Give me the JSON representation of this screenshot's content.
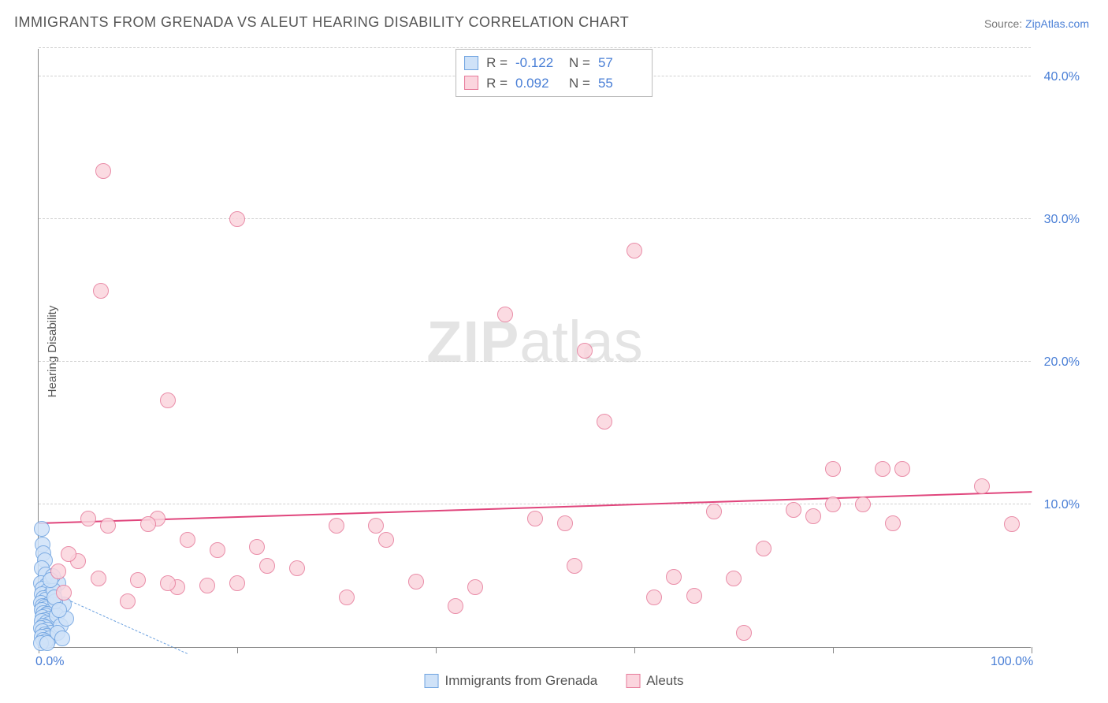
{
  "title": "IMMIGRANTS FROM GRENADA VS ALEUT HEARING DISABILITY CORRELATION CHART",
  "source_label": "Source: ",
  "source_link": "ZipAtlas.com",
  "ylabel": "Hearing Disability",
  "watermark_bold": "ZIP",
  "watermark_light": "atlas",
  "chart": {
    "type": "scatter",
    "xlim": [
      0,
      100
    ],
    "ylim": [
      0,
      42
    ],
    "x_ticks": [
      0,
      20,
      40,
      60,
      80,
      100
    ],
    "x_tick_labels": {
      "0": "0.0%",
      "100": "100.0%"
    },
    "y_gridlines": [
      10,
      20,
      30,
      40,
      42
    ],
    "y_tick_labels": {
      "10": "10.0%",
      "20": "20.0%",
      "30": "30.0%",
      "40": "40.0%"
    },
    "background_color": "#ffffff",
    "grid_color": "#d0d0d0",
    "axis_color": "#888888",
    "marker_radius": 10,
    "series": [
      {
        "name": "Immigrants from Grenada",
        "fill": "#cfe2f8",
        "stroke": "#6fa3e0",
        "R": "-0.122",
        "N": "57",
        "trend": {
          "x1": 0,
          "y1": 4.2,
          "x2": 15,
          "y2": -0.5,
          "color": "#6fa3e0",
          "width": 1.5,
          "dash": true
        },
        "points": [
          [
            0.3,
            8.3
          ],
          [
            0.4,
            7.2
          ],
          [
            0.5,
            6.6
          ],
          [
            0.6,
            6.1
          ],
          [
            0.3,
            5.5
          ],
          [
            0.7,
            5.1
          ],
          [
            0.2,
            4.5
          ],
          [
            0.8,
            4.3
          ],
          [
            0.4,
            4.1
          ],
          [
            0.9,
            3.9
          ],
          [
            0.3,
            3.7
          ],
          [
            1.1,
            3.6
          ],
          [
            0.5,
            3.4
          ],
          [
            0.7,
            3.3
          ],
          [
            0.2,
            3.1
          ],
          [
            1.0,
            3.0
          ],
          [
            0.4,
            2.9
          ],
          [
            0.6,
            2.8
          ],
          [
            0.8,
            2.7
          ],
          [
            0.3,
            2.6
          ],
          [
            1.2,
            2.5
          ],
          [
            0.5,
            2.4
          ],
          [
            0.9,
            2.3
          ],
          [
            0.7,
            2.2
          ],
          [
            0.4,
            2.1
          ],
          [
            1.1,
            2.0
          ],
          [
            0.6,
            1.9
          ],
          [
            0.3,
            1.8
          ],
          [
            0.8,
            1.7
          ],
          [
            1.0,
            1.6
          ],
          [
            0.5,
            1.5
          ],
          [
            0.7,
            1.4
          ],
          [
            0.2,
            1.3
          ],
          [
            0.9,
            1.2
          ],
          [
            0.4,
            1.1
          ],
          [
            1.3,
            1.0
          ],
          [
            0.6,
            0.9
          ],
          [
            0.8,
            0.8
          ],
          [
            0.3,
            0.7
          ],
          [
            1.1,
            0.6
          ],
          [
            0.5,
            0.5
          ],
          [
            0.7,
            0.4
          ],
          [
            0.2,
            0.3
          ],
          [
            0.9,
            0.25
          ],
          [
            2.0,
            4.5
          ],
          [
            2.5,
            3.0
          ],
          [
            1.8,
            2.2
          ],
          [
            2.2,
            1.5
          ],
          [
            1.5,
            4.0
          ],
          [
            1.7,
            3.2
          ],
          [
            2.8,
            2.0
          ],
          [
            1.4,
            5.0
          ],
          [
            1.9,
            1.0
          ],
          [
            2.4,
            0.6
          ],
          [
            1.6,
            3.5
          ],
          [
            2.1,
            2.6
          ],
          [
            1.2,
            4.7
          ]
        ]
      },
      {
        "name": "Aleuts",
        "fill": "#fbd5de",
        "stroke": "#e67a9a",
        "R": "0.092",
        "N": "55",
        "trend": {
          "x1": 0,
          "y1": 8.6,
          "x2": 100,
          "y2": 10.8,
          "color": "#e0457c",
          "width": 2,
          "dash": false
        },
        "points": [
          [
            6.5,
            33.4
          ],
          [
            20,
            30.0
          ],
          [
            6.3,
            25.0
          ],
          [
            47,
            23.3
          ],
          [
            55,
            20.8
          ],
          [
            13,
            17.3
          ],
          [
            57,
            15.8
          ],
          [
            60,
            27.8
          ],
          [
            80,
            12.5
          ],
          [
            83,
            10.0
          ],
          [
            85,
            12.5
          ],
          [
            87,
            12.5
          ],
          [
            95,
            11.3
          ],
          [
            98,
            8.6
          ],
          [
            86,
            8.7
          ],
          [
            80,
            10.0
          ],
          [
            78,
            9.2
          ],
          [
            76,
            9.6
          ],
          [
            73,
            6.9
          ],
          [
            71,
            1.0
          ],
          [
            70,
            4.8
          ],
          [
            68,
            9.5
          ],
          [
            66,
            3.6
          ],
          [
            64,
            4.9
          ],
          [
            62,
            3.5
          ],
          [
            54,
            5.7
          ],
          [
            53,
            8.7
          ],
          [
            50,
            9.0
          ],
          [
            44,
            4.2
          ],
          [
            42,
            2.9
          ],
          [
            38,
            4.6
          ],
          [
            35,
            7.5
          ],
          [
            34,
            8.5
          ],
          [
            31,
            3.5
          ],
          [
            30,
            8.5
          ],
          [
            26,
            5.5
          ],
          [
            23,
            5.7
          ],
          [
            22,
            7.0
          ],
          [
            20,
            4.5
          ],
          [
            18,
            6.8
          ],
          [
            17,
            4.3
          ],
          [
            15,
            7.5
          ],
          [
            14,
            4.2
          ],
          [
            13,
            4.5
          ],
          [
            12,
            9.0
          ],
          [
            11,
            8.6
          ],
          [
            10,
            4.7
          ],
          [
            9,
            3.2
          ],
          [
            7,
            8.5
          ],
          [
            6,
            4.8
          ],
          [
            5,
            9.0
          ],
          [
            4,
            6.0
          ],
          [
            3,
            6.5
          ],
          [
            2.5,
            3.8
          ],
          [
            2,
            5.3
          ]
        ]
      }
    ]
  },
  "legend_bottom": [
    {
      "label": "Immigrants from Grenada",
      "fill": "#cfe2f8",
      "stroke": "#6fa3e0"
    },
    {
      "label": "Aleuts",
      "fill": "#fbd5de",
      "stroke": "#e67a9a"
    }
  ]
}
